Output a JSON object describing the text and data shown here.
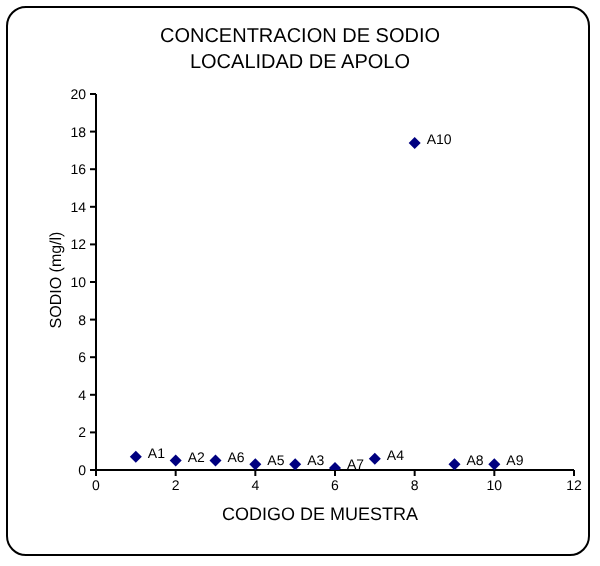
{
  "chart_data": {
    "type": "scatter",
    "title": "CONCENTRACION DE SODIO\nLOCALIDAD DE APOLO",
    "xlabel": "CODIGO DE MUESTRA",
    "ylabel": "SODIO (mg/l)",
    "x": [
      1,
      2,
      3,
      4,
      5,
      6,
      7,
      8,
      9,
      10
    ],
    "series": [
      {
        "color": "#000080",
        "values": [
          0.7,
          0.5,
          0.5,
          0.3,
          0.3,
          0.1,
          0.6,
          17.4,
          0.3,
          0.3
        ]
      }
    ],
    "annotations": [
      {
        "text": "A1",
        "x": 1,
        "y": 0.7
      },
      {
        "text": "A2",
        "x": 2,
        "y": 0.5
      },
      {
        "text": "A6",
        "x": 3,
        "y": 0.5
      },
      {
        "text": "A5",
        "x": 4,
        "y": 0.3
      },
      {
        "text": "A3",
        "x": 5,
        "y": 0.3
      },
      {
        "text": "A7",
        "x": 6,
        "y": 0.1
      },
      {
        "text": "A4",
        "x": 7,
        "y": 0.6
      },
      {
        "text": "A10",
        "x": 8,
        "y": 17.4
      },
      {
        "text": "A8",
        "x": 9,
        "y": 0.3
      },
      {
        "text": "A9",
        "x": 10,
        "y": 0.3
      }
    ],
    "xlim": [
      0,
      12
    ],
    "xticks": [
      0,
      2,
      4,
      6,
      8,
      10,
      12
    ],
    "ylim": [
      0,
      20
    ],
    "yticks": [
      0,
      2,
      4,
      6,
      8,
      10,
      12,
      14,
      16,
      18,
      20
    ],
    "marker": "diamond",
    "grid": false,
    "legend": false
  }
}
